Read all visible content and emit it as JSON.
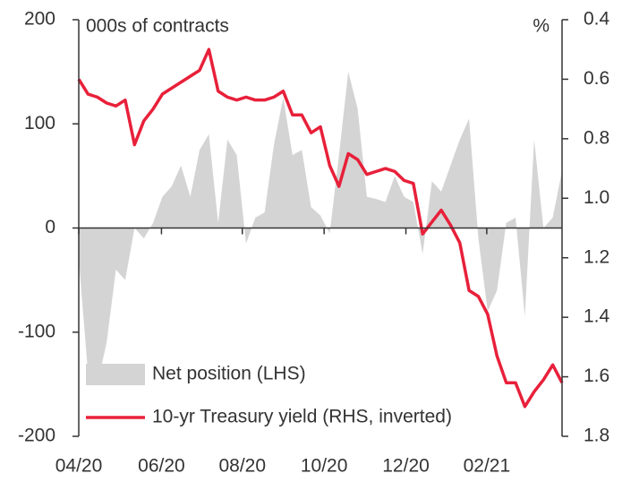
{
  "chart_data": {
    "type": "combo",
    "annotations": [
      "000s of contracts",
      "%"
    ],
    "x": [
      0,
      1,
      2,
      3,
      4,
      5,
      6,
      7,
      8,
      9,
      10,
      11,
      12,
      13,
      14,
      15,
      16,
      17,
      18,
      19,
      20,
      21,
      22,
      23,
      24,
      25,
      26,
      27,
      28,
      29,
      30,
      31,
      32,
      33,
      34,
      35,
      36,
      37,
      38,
      39,
      40,
      41,
      42,
      43,
      44,
      45,
      46,
      47,
      48,
      49,
      50,
      51,
      52
    ],
    "xlim": [
      0,
      52
    ],
    "xticks": [
      {
        "value": 0,
        "label": "04/20"
      },
      {
        "value": 8.9,
        "label": "06/20"
      },
      {
        "value": 17.6,
        "label": "08/20"
      },
      {
        "value": 26.4,
        "label": "10/20"
      },
      {
        "value": 35.2,
        "label": "12/20"
      },
      {
        "value": 43.9,
        "label": "02/21"
      }
    ],
    "ylim": [
      -200,
      200
    ],
    "yticks": [
      -200,
      -100,
      0,
      100,
      200
    ],
    "y2lim": [
      1.8,
      0.4
    ],
    "y2ticks": [
      {
        "value": 0.4,
        "label": "0.4"
      },
      {
        "value": 0.6,
        "label": "0.6"
      },
      {
        "value": 0.8,
        "label": "0.8"
      },
      {
        "value": 1.0,
        "label": "1.0"
      },
      {
        "value": 1.2,
        "label": "1.2"
      },
      {
        "value": 1.4,
        "label": "1.4"
      },
      {
        "value": 1.6,
        "label": "1.6"
      },
      {
        "value": 1.8,
        "label": "1.8"
      }
    ],
    "y2_inverted": true,
    "legend": "lower left",
    "series": [
      {
        "name": "Net position (LHS)",
        "type": "area",
        "color": "#d4d4d4",
        "values": [
          -30,
          -140,
          -150,
          -110,
          -40,
          -50,
          0,
          -10,
          5,
          30,
          40,
          60,
          30,
          75,
          90,
          5,
          85,
          70,
          -15,
          10,
          15,
          80,
          125,
          70,
          75,
          20,
          12,
          -5,
          70,
          150,
          115,
          30,
          28,
          25,
          50,
          30,
          25,
          -25,
          45,
          35,
          60,
          85,
          105,
          -10,
          -80,
          -60,
          5,
          10,
          -85,
          85,
          0,
          10,
          55
        ]
      },
      {
        "name": "10-yr Treasury yield (RHS, inverted)",
        "type": "line",
        "axis": "y2",
        "color": "#e8203a",
        "values": [
          0.6,
          0.65,
          0.66,
          0.68,
          0.69,
          0.67,
          0.82,
          0.74,
          0.7,
          0.65,
          0.63,
          0.61,
          0.59,
          0.57,
          0.5,
          0.64,
          0.66,
          0.67,
          0.66,
          0.67,
          0.67,
          0.66,
          0.64,
          0.72,
          0.72,
          0.78,
          0.76,
          0.89,
          0.96,
          0.85,
          0.87,
          0.92,
          0.91,
          0.9,
          0.91,
          0.94,
          0.95,
          1.12,
          1.08,
          1.04,
          1.09,
          1.15,
          1.31,
          1.33,
          1.39,
          1.53,
          1.62,
          1.62,
          1.7,
          1.65,
          1.61,
          1.56,
          1.62
        ]
      }
    ]
  }
}
